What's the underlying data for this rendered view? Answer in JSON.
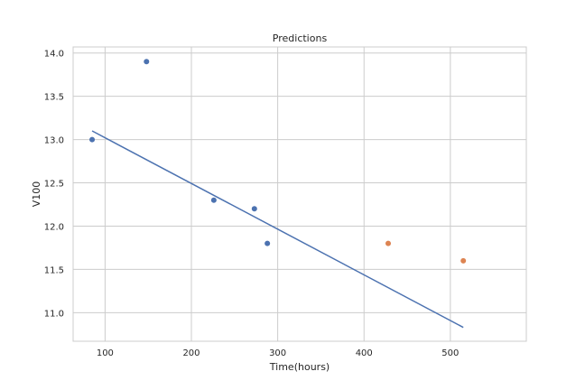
{
  "chart_data": {
    "type": "scatter",
    "title": "Predictions",
    "xlabel": "Time(hours)",
    "ylabel": "V100",
    "xlim": [
      63,
      588
    ],
    "ylim": [
      10.67,
      14.07
    ],
    "xticks": [
      100,
      200,
      300,
      400,
      500
    ],
    "yticks": [
      11.0,
      11.5,
      12.0,
      12.5,
      13.0,
      13.5,
      14.0
    ],
    "grid": true,
    "series": [
      {
        "type": "scatter",
        "color": "#4c72b0",
        "x": [
          85,
          148,
          226,
          273,
          288
        ],
        "y": [
          13.0,
          13.9,
          12.3,
          12.2,
          11.8
        ]
      },
      {
        "type": "line",
        "color": "#4c72b0",
        "x": [
          85,
          515
        ],
        "y": [
          13.1,
          10.83
        ]
      },
      {
        "type": "scatter",
        "color": "#dd8452",
        "x": [
          428,
          515
        ],
        "y": [
          11.8,
          11.6
        ]
      }
    ]
  }
}
